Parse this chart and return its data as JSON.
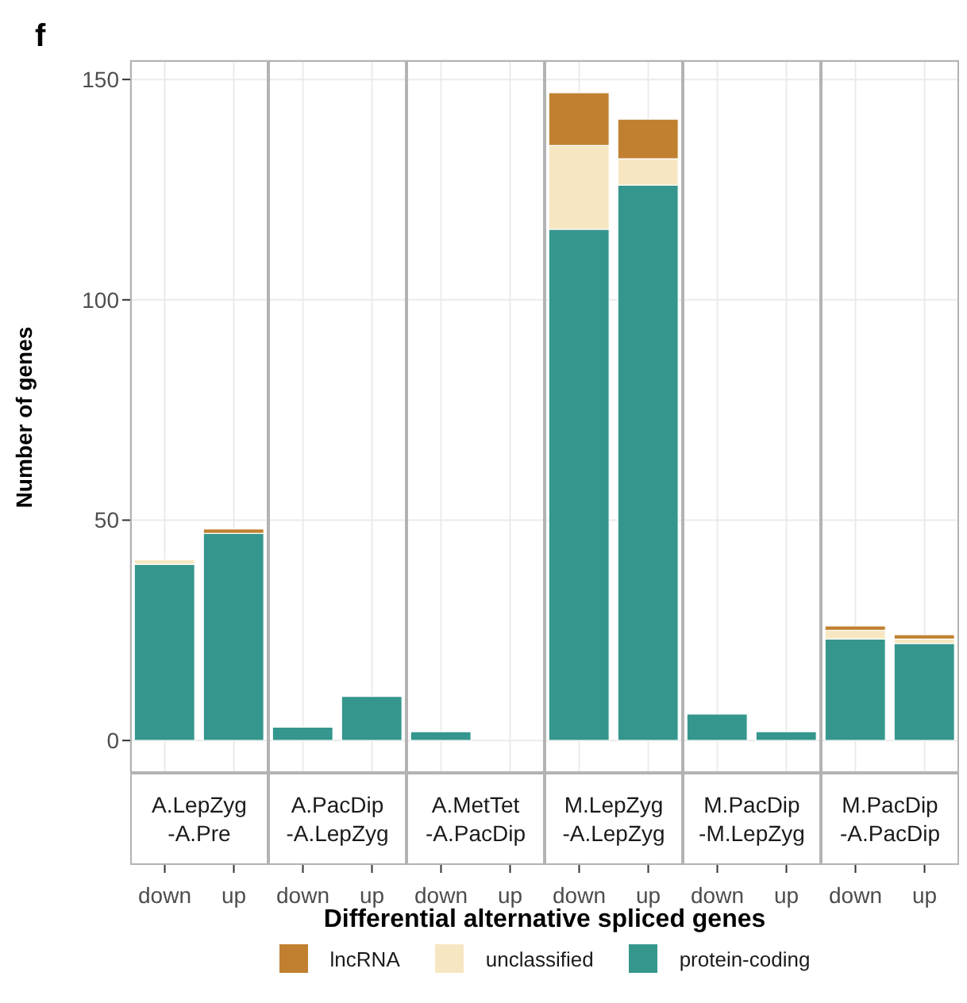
{
  "chart_data": [
    {
      "type": "bar",
      "title": "A.LepZyg\n-A.Pre",
      "categories": [
        "down",
        "up"
      ],
      "stacked": true,
      "ylim": [
        -7.35,
        154.35
      ],
      "yticks": [
        0,
        50,
        100,
        150
      ],
      "grid": true,
      "ylabel": "Number of genes",
      "xlabel": "Differential alternative spliced genes",
      "legend": "bottom",
      "annotations": [
        "f"
      ],
      "series": [
        {
          "name": "protein-coding",
          "color": "#35968d",
          "values": [
            40,
            47
          ]
        },
        {
          "name": "unclassified",
          "color": "#f6e7c2",
          "values": [
            1,
            0
          ]
        },
        {
          "name": "lncRNA",
          "color": "#c0802f",
          "values": [
            0,
            1
          ]
        }
      ]
    },
    {
      "type": "bar",
      "title": "A.PacDip\n-A.LepZyg",
      "categories": [
        "down",
        "up"
      ],
      "stacked": true,
      "ylim": [
        -7.35,
        154.35
      ],
      "yticks": [
        0,
        50,
        100,
        150
      ],
      "grid": true,
      "tick_labels": "x",
      "series": [
        {
          "color": "#35968d",
          "values": [
            3,
            10
          ]
        },
        {
          "color": "#f6e7c2",
          "values": [
            0,
            0
          ]
        },
        {
          "color": "#c0802f",
          "values": [
            0,
            0
          ]
        }
      ]
    },
    {
      "type": "bar",
      "title": "A.MetTet\n-A.PacDip",
      "categories": [
        "down",
        "up"
      ],
      "stacked": true,
      "ylim": [
        -7.35,
        154.35
      ],
      "yticks": [
        0,
        50,
        100,
        150
      ],
      "grid": true,
      "tick_labels": "x",
      "series": [
        {
          "color": "#35968d",
          "values": [
            2,
            0
          ]
        },
        {
          "color": "#f6e7c2",
          "values": [
            0,
            0
          ]
        },
        {
          "color": "#c0802f",
          "values": [
            0,
            0
          ]
        }
      ]
    },
    {
      "type": "bar",
      "title": "M.LepZyg\n-A.LepZyg",
      "categories": [
        "down",
        "up"
      ],
      "stacked": true,
      "ylim": [
        -7.35,
        154.35
      ],
      "yticks": [
        0,
        50,
        100,
        150
      ],
      "grid": true,
      "tick_labels": "x",
      "series": [
        {
          "color": "#35968d",
          "values": [
            116,
            126
          ]
        },
        {
          "color": "#f6e7c2",
          "values": [
            19,
            6
          ]
        },
        {
          "color": "#c0802f",
          "values": [
            12,
            9
          ]
        }
      ]
    },
    {
      "type": "bar",
      "title": "M.PacDip\n-M.LepZyg",
      "categories": [
        "down",
        "up"
      ],
      "stacked": true,
      "ylim": [
        -7.35,
        154.35
      ],
      "yticks": [
        0,
        50,
        100,
        150
      ],
      "grid": true,
      "tick_labels": "x",
      "series": [
        {
          "color": "#35968d",
          "values": [
            6,
            2
          ]
        },
        {
          "color": "#f6e7c2",
          "values": [
            0,
            0
          ]
        },
        {
          "color": "#c0802f",
          "values": [
            0,
            0
          ]
        }
      ]
    },
    {
      "type": "bar",
      "title": "M.PacDip\n-A.PacDip",
      "categories": [
        "down",
        "up"
      ],
      "stacked": true,
      "ylim": [
        -7.35,
        154.35
      ],
      "yticks": [
        0,
        50,
        100,
        150
      ],
      "grid": true,
      "tick_labels": "x",
      "series": [
        {
          "color": "#35968d",
          "values": [
            23,
            22
          ]
        },
        {
          "color": "#f6e7c2",
          "values": [
            2,
            1
          ]
        },
        {
          "color": "#c0802f",
          "values": [
            1,
            1
          ]
        }
      ]
    }
  ]
}
